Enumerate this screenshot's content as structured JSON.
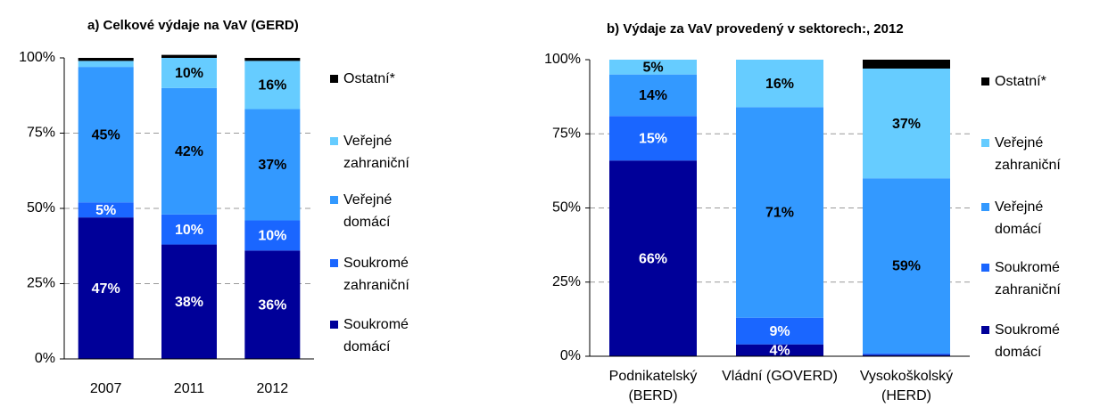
{
  "chart_data": [
    {
      "type": "stacked_bar",
      "title": "a) Celkové výdaje na VaV (GERD)",
      "categories": [
        "2007",
        "2011",
        "2012"
      ],
      "series": [
        {
          "name": "Soukromé domácí",
          "color": "#000099",
          "values": [
            47,
            38,
            36
          ],
          "value_labels": [
            "47%",
            "38%",
            "36%"
          ]
        },
        {
          "name": "Soukromé zahraniční",
          "color": "#1a66ff",
          "values": [
            5,
            10,
            10
          ],
          "value_labels": [
            "5%",
            "10%",
            "10%"
          ]
        },
        {
          "name": "Veřejné domácí",
          "color": "#3399ff",
          "values": [
            45,
            42,
            37
          ],
          "value_labels": [
            "45%",
            "42%",
            "37%"
          ]
        },
        {
          "name": "Veřejné zahraniční",
          "color": "#66ccff",
          "values": [
            2,
            10,
            16
          ],
          "value_labels": [
            null,
            "10%",
            "16%"
          ]
        },
        {
          "name": "Ostatní*",
          "color": "#000000",
          "values": [
            1,
            1,
            1
          ],
          "value_labels": [
            null,
            null,
            null
          ]
        }
      ],
      "ylim": [
        0,
        100
      ],
      "yticks": [
        {
          "value": 0,
          "label": "0%"
        },
        {
          "value": 25,
          "label": "25%"
        },
        {
          "value": 50,
          "label": "50%"
        },
        {
          "value": 75,
          "label": "75%"
        },
        {
          "value": 100,
          "label": "100%"
        }
      ],
      "grid": true
    },
    {
      "type": "stacked_bar",
      "title": "b) Výdaje za VaV provedený v sektorech:, 2012",
      "categories": [
        "Podnikatelský (BERD)",
        "Vládní (GOVERD)",
        "Vysokoškolský (HERD)"
      ],
      "series": [
        {
          "name": "Soukromé domácí",
          "color": "#000099",
          "values": [
            66,
            4,
            0.5
          ],
          "value_labels": [
            "66%",
            "4%",
            null
          ]
        },
        {
          "name": "Soukromé zahraniční",
          "color": "#1a66ff",
          "values": [
            15,
            9,
            0.5
          ],
          "value_labels": [
            "15%",
            "9%",
            null
          ]
        },
        {
          "name": "Veřejné domácí",
          "color": "#3399ff",
          "values": [
            14,
            71,
            59
          ],
          "value_labels": [
            "14%",
            "71%",
            "59%"
          ]
        },
        {
          "name": "Veřejné zahraniční",
          "color": "#66ccff",
          "values": [
            5,
            16,
            37
          ],
          "value_labels": [
            "5%",
            "16%",
            "37%"
          ]
        },
        {
          "name": "Ostatní*",
          "color": "#000000",
          "values": [
            0,
            0,
            3
          ],
          "value_labels": [
            null,
            null,
            null
          ]
        }
      ],
      "ylim": [
        0,
        100
      ],
      "yticks": [
        {
          "value": 0,
          "label": "0%"
        },
        {
          "value": 25,
          "label": "25%"
        },
        {
          "value": 50,
          "label": "50%"
        },
        {
          "value": 75,
          "label": "75%"
        },
        {
          "value": 100,
          "label": "100%"
        }
      ],
      "grid": true
    }
  ]
}
